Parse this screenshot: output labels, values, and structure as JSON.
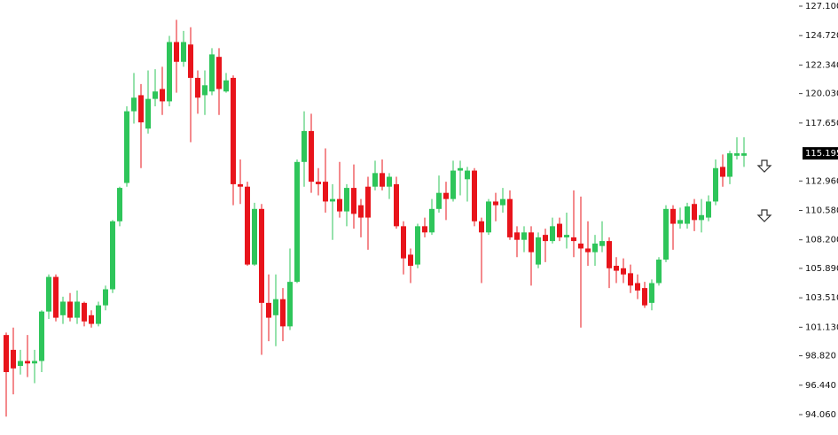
{
  "chart_data": {
    "type": "candlestick",
    "up_color": "#2ec55a",
    "down_color": "#e8141b",
    "ylim": [
      93.2,
      127.6
    ],
    "yticks": [
      {
        "value": 127.1,
        "label": "127.100"
      },
      {
        "value": 124.72,
        "label": "124.720"
      },
      {
        "value": 122.34,
        "label": "122.340"
      },
      {
        "value": 120.03,
        "label": "120.030"
      },
      {
        "value": 117.65,
        "label": "117.650"
      },
      {
        "value": 112.96,
        "label": "112.960"
      },
      {
        "value": 110.58,
        "label": "110.580"
      },
      {
        "value": 108.2,
        "label": "108.200"
      },
      {
        "value": 105.89,
        "label": "105.890"
      },
      {
        "value": 103.51,
        "label": "103.510"
      },
      {
        "value": 101.13,
        "label": "101.130"
      },
      {
        "value": 98.82,
        "label": "98.820"
      },
      {
        "value": 96.44,
        "label": "96.440"
      },
      {
        "value": 94.06,
        "label": "94.060"
      }
    ],
    "last_price": {
      "value": 115.195,
      "label": "115.195"
    },
    "open": [
      100.5,
      99.3,
      98.0,
      98.4,
      98.2,
      98.4,
      102.4,
      105.2,
      102.1,
      103.2,
      101.9,
      103.1,
      102.1,
      101.4,
      102.9,
      104.2,
      109.7,
      112.8,
      118.6,
      119.9,
      117.2,
      119.6,
      120.4,
      119.4,
      124.2,
      122.6,
      124.0,
      121.3,
      119.9,
      120.2,
      123.0,
      120.2,
      121.3,
      112.7,
      112.5,
      106.2,
      110.7,
      103.1,
      102.1,
      103.4,
      101.2,
      104.8,
      114.5,
      117.0,
      112.9,
      112.9,
      111.3,
      111.5,
      110.5,
      112.4,
      111.0,
      112.5,
      112.5,
      113.6,
      112.5,
      112.7,
      109.3,
      107.0,
      106.2,
      109.3,
      108.8,
      110.7,
      112.0,
      111.5,
      113.8,
      113.1,
      113.8,
      109.7,
      108.8,
      111.3,
      111.0,
      111.5,
      108.8,
      108.2,
      108.8,
      106.2,
      108.6,
      108.1,
      109.5,
      108.4,
      108.4,
      107.9,
      107.5,
      107.2,
      107.7,
      108.1,
      106.1,
      105.9,
      105.5,
      104.7,
      104.3,
      103.1,
      104.7,
      106.6,
      110.7,
      109.5,
      109.5,
      111.1,
      109.8,
      110.0,
      111.3,
      114.1,
      113.3,
      115.0,
      115.0
    ],
    "high": [
      100.7,
      101.1,
      99.3,
      100.5,
      99.3,
      102.5,
      105.4,
      105.4,
      103.6,
      103.9,
      104.1,
      103.2,
      102.5,
      103.2,
      104.5,
      109.8,
      112.5,
      119.0,
      121.7,
      120.8,
      121.9,
      122.0,
      122.2,
      124.7,
      126.0,
      125.1,
      125.4,
      121.9,
      121.9,
      123.7,
      123.7,
      121.7,
      121.5,
      114.7,
      112.9,
      111.2,
      111.1,
      105.4,
      105.4,
      104.3,
      107.5,
      114.7,
      118.6,
      118.4,
      114.0,
      115.6,
      112.7,
      114.5,
      112.7,
      114.3,
      111.5,
      113.3,
      114.6,
      114.7,
      113.6,
      113.3,
      109.7,
      107.5,
      109.5,
      110.0,
      111.5,
      113.4,
      112.9,
      114.6,
      114.6,
      114.1,
      114.0,
      110.0,
      111.5,
      112.0,
      112.4,
      112.2,
      109.3,
      109.3,
      109.3,
      108.8,
      109.1,
      110.0,
      110.0,
      110.4,
      112.2,
      111.7,
      109.7,
      108.6,
      109.7,
      108.4,
      106.8,
      106.7,
      106.2,
      105.4,
      104.8,
      105.0,
      106.8,
      111.0,
      111.0,
      110.8,
      111.2,
      111.5,
      111.5,
      111.8,
      114.7,
      115.1,
      115.4,
      116.5,
      116.5
    ],
    "low": [
      93.9,
      95.7,
      97.3,
      97.1,
      96.6,
      97.5,
      101.8,
      101.6,
      101.4,
      101.6,
      101.4,
      101.2,
      101.1,
      101.2,
      102.5,
      103.9,
      109.3,
      112.5,
      117.6,
      114.0,
      116.8,
      119.0,
      118.3,
      119.0,
      120.1,
      122.2,
      116.1,
      118.4,
      118.3,
      119.9,
      118.3,
      120.1,
      111.0,
      111.1,
      106.1,
      106.1,
      98.9,
      100.0,
      99.6,
      100.0,
      100.9,
      104.7,
      112.5,
      112.0,
      111.8,
      110.4,
      108.2,
      110.0,
      109.3,
      109.1,
      108.4,
      107.4,
      112.2,
      112.2,
      111.5,
      109.1,
      105.4,
      104.7,
      105.9,
      108.4,
      108.6,
      110.4,
      109.8,
      111.3,
      111.8,
      111.3,
      109.3,
      104.7,
      108.6,
      109.7,
      110.4,
      108.2,
      106.8,
      107.2,
      104.5,
      105.9,
      106.4,
      107.9,
      108.1,
      107.5,
      106.8,
      101.1,
      106.1,
      106.1,
      107.2,
      104.3,
      104.7,
      104.7,
      103.9,
      103.4,
      102.7,
      102.5,
      104.5,
      106.4,
      107.4,
      109.1,
      109.1,
      108.9,
      108.8,
      109.7,
      111.0,
      112.5,
      112.7,
      114.7,
      114.1
    ],
    "close": [
      97.5,
      97.8,
      98.4,
      98.2,
      98.4,
      102.4,
      105.2,
      101.9,
      103.2,
      101.9,
      103.2,
      101.6,
      101.4,
      102.9,
      104.2,
      109.7,
      112.4,
      118.6,
      119.7,
      117.7,
      119.6,
      120.2,
      119.4,
      124.2,
      122.6,
      124.2,
      121.3,
      119.7,
      120.7,
      123.2,
      120.4,
      121.1,
      112.7,
      112.5,
      106.2,
      110.7,
      103.1,
      101.9,
      103.4,
      101.2,
      104.8,
      114.5,
      117.0,
      112.9,
      112.7,
      111.3,
      111.5,
      110.5,
      112.4,
      110.3,
      110.0,
      110.0,
      113.6,
      112.5,
      113.3,
      109.3,
      106.7,
      106.1,
      109.3,
      108.8,
      110.7,
      112.0,
      111.5,
      113.8,
      114.0,
      113.8,
      109.7,
      108.8,
      111.3,
      111.0,
      111.5,
      108.4,
      108.2,
      108.8,
      107.2,
      108.4,
      108.1,
      109.3,
      108.4,
      108.6,
      108.1,
      107.5,
      107.2,
      107.9,
      108.1,
      105.9,
      105.7,
      105.4,
      104.5,
      104.1,
      102.9,
      104.7,
      106.6,
      110.7,
      109.5,
      109.8,
      110.9,
      109.8,
      110.2,
      111.3,
      114.0,
      113.3,
      115.2,
      115.2,
      115.2
    ]
  }
}
